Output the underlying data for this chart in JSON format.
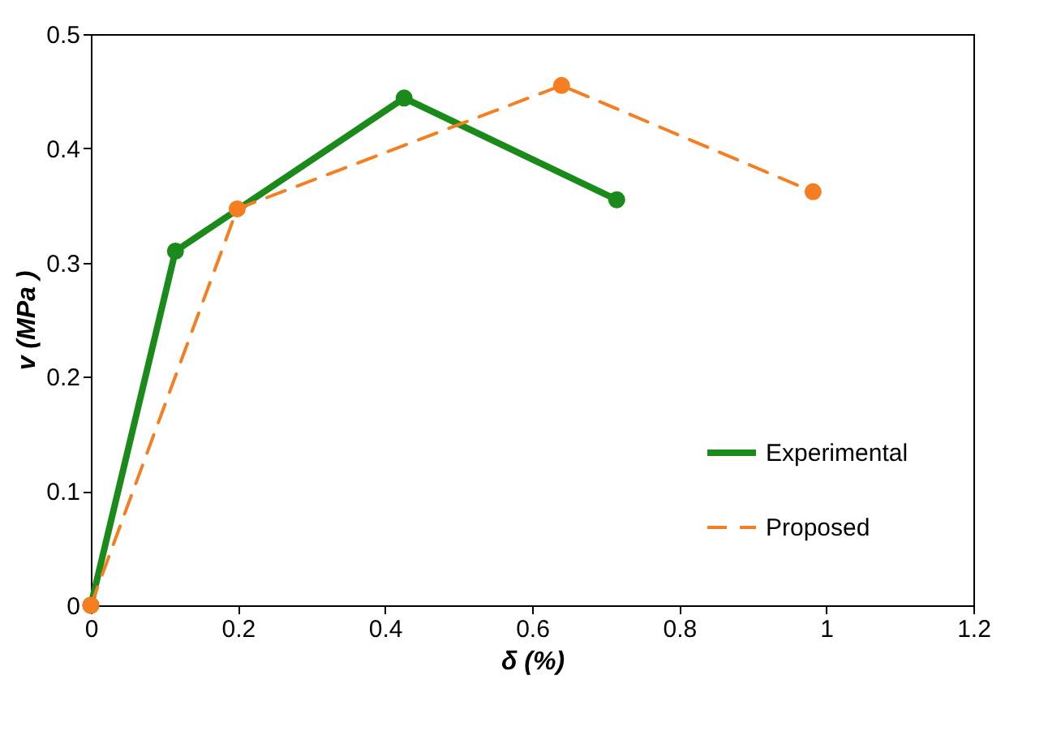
{
  "chart_data": {
    "type": "line",
    "xlabel": "δ (%)",
    "ylabel": "v (MPa )",
    "xlim": [
      0,
      1.2
    ],
    "xticks": [
      0,
      0.2,
      0.4,
      0.6,
      0.8,
      1,
      1.2
    ],
    "ylim": [
      0,
      0.5
    ],
    "yticks": [
      0,
      0.1,
      0.2,
      0.3,
      0.4,
      0.5
    ],
    "grid": false,
    "legend": "bottom right",
    "marker": "circle",
    "series": [
      {
        "name": "Experimental",
        "color": "#1a8a1a",
        "line_style": "solid",
        "x": [
          0,
          0.115,
          0.426,
          0.715
        ],
        "values": [
          0,
          0.31,
          0.444,
          0.355
        ]
      },
      {
        "name": "Proposed",
        "color": "#f47e20",
        "line_style": "dashed",
        "x": [
          0,
          0.199,
          0.64,
          0.982
        ],
        "values": [
          0,
          0.347,
          0.455,
          0.362
        ]
      }
    ]
  }
}
